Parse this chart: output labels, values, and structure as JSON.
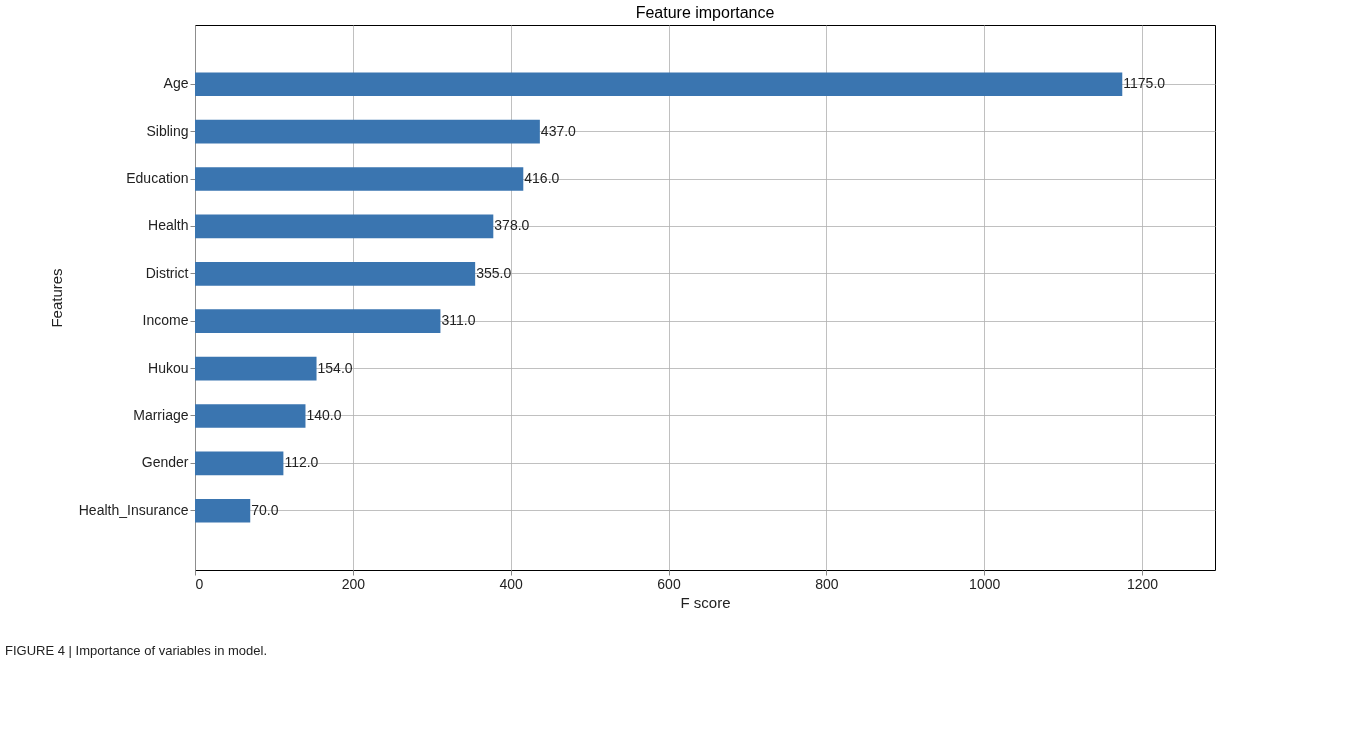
{
  "chart_data": {
    "type": "bar",
    "orientation": "horizontal",
    "title": "Feature importance",
    "xlabel": "F score",
    "ylabel": "Features",
    "categories": [
      "Age",
      "Sibling",
      "Education",
      "Health",
      "District",
      "Income",
      "Hukou",
      "Marriage",
      "Gender",
      "Health_Insurance"
    ],
    "values": [
      1175,
      437,
      416,
      378,
      355,
      311,
      154,
      140,
      112,
      70
    ],
    "value_labels": [
      "1175.0",
      "437.0",
      "416.0",
      "378.0",
      "355.0",
      "311.0",
      "154.0",
      "140.0",
      "112.0",
      "70.0"
    ],
    "color": "#3a75b0",
    "xlim": [
      0,
      1292.5
    ],
    "xticks": [
      0,
      200,
      400,
      600,
      800,
      1000,
      1200
    ],
    "grid": true,
    "annotations": [
      "FIGURE 4 | Importance of variables in model."
    ]
  }
}
